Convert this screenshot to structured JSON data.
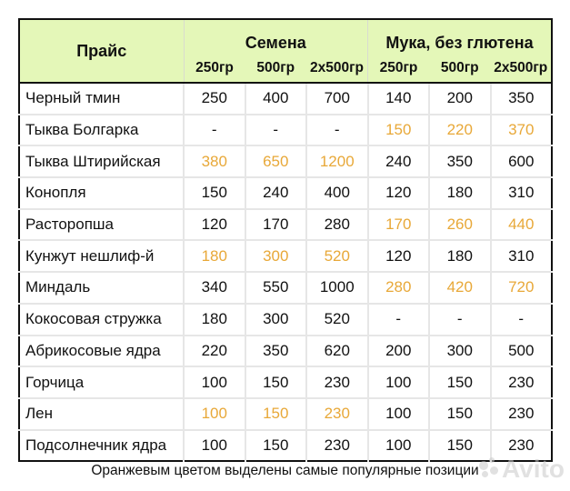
{
  "table": {
    "title": "Прайс",
    "groups": [
      {
        "label": "Семена",
        "sizes": [
          "250гр",
          "500гр",
          "2х500гр"
        ]
      },
      {
        "label": "Мука, без глютена",
        "sizes": [
          "250гр",
          "500гр",
          "2х500гр"
        ]
      }
    ],
    "highlight_color": "#e8a838",
    "header_bg": "#e4f7b8",
    "rows": [
      {
        "name": "Черный тмин",
        "seeds": [
          "250",
          "400",
          "700"
        ],
        "seeds_hl": false,
        "flour": [
          "140",
          "200",
          "350"
        ],
        "flour_hl": false
      },
      {
        "name": "Тыква Болгарка",
        "seeds": [
          "-",
          "-",
          "-"
        ],
        "seeds_hl": false,
        "flour": [
          "150",
          "220",
          "370"
        ],
        "flour_hl": true
      },
      {
        "name": "Тыква Штирийская",
        "seeds": [
          "380",
          "650",
          "1200"
        ],
        "seeds_hl": true,
        "flour": [
          "240",
          "350",
          "600"
        ],
        "flour_hl": false
      },
      {
        "name": "Конопля",
        "seeds": [
          "150",
          "240",
          "400"
        ],
        "seeds_hl": false,
        "flour": [
          "120",
          "180",
          "310"
        ],
        "flour_hl": false
      },
      {
        "name": "Расторопша",
        "seeds": [
          "120",
          "170",
          "280"
        ],
        "seeds_hl": false,
        "flour": [
          "170",
          "260",
          "440"
        ],
        "flour_hl": true
      },
      {
        "name": "Кунжут нешлиф-й",
        "seeds": [
          "180",
          "300",
          "520"
        ],
        "seeds_hl": true,
        "flour": [
          "120",
          "180",
          "310"
        ],
        "flour_hl": false
      },
      {
        "name": "Миндаль",
        "seeds": [
          "340",
          "550",
          "1000"
        ],
        "seeds_hl": false,
        "flour": [
          "280",
          "420",
          "720"
        ],
        "flour_hl": true
      },
      {
        "name": "Кокосовая стружка",
        "seeds": [
          "180",
          "300",
          "520"
        ],
        "seeds_hl": false,
        "flour": [
          "-",
          "-",
          "-"
        ],
        "flour_hl": false
      },
      {
        "name": "Абрикосовые ядра",
        "seeds": [
          "220",
          "350",
          "620"
        ],
        "seeds_hl": false,
        "flour": [
          "200",
          "300",
          "500"
        ],
        "flour_hl": false
      },
      {
        "name": "Горчица",
        "seeds": [
          "100",
          "150",
          "230"
        ],
        "seeds_hl": false,
        "flour": [
          "100",
          "150",
          "230"
        ],
        "flour_hl": false
      },
      {
        "name": "Лен",
        "seeds": [
          "100",
          "150",
          "230"
        ],
        "seeds_hl": true,
        "flour": [
          "100",
          "150",
          "230"
        ],
        "flour_hl": false
      },
      {
        "name": "Подсолнечник ядра",
        "seeds": [
          "100",
          "150",
          "230"
        ],
        "seeds_hl": false,
        "flour": [
          "100",
          "150",
          "230"
        ],
        "flour_hl": false
      }
    ]
  },
  "caption": "Оранжевым цветом выделены самые популярные позиции",
  "watermark": {
    "text": "Avito",
    "icon": "avito-dots-icon"
  }
}
